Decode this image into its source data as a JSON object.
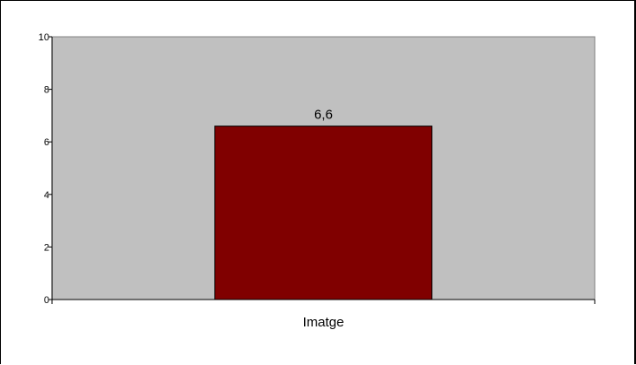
{
  "chart_data": {
    "type": "bar",
    "categories": [
      "Imatge"
    ],
    "values": [
      6.6
    ],
    "data_labels": [
      "6,6"
    ],
    "ylim": [
      0,
      10
    ],
    "yticks": [
      "0",
      "2",
      "4",
      "6",
      "8",
      "10"
    ],
    "title": "",
    "xlabel": "",
    "ylabel": "",
    "grid": false,
    "legend": "none",
    "colors": {
      "plot_background": "#c0c0c0",
      "bar_fill": "#800000",
      "bar_stroke": "#000000",
      "axis": "#000000"
    }
  }
}
